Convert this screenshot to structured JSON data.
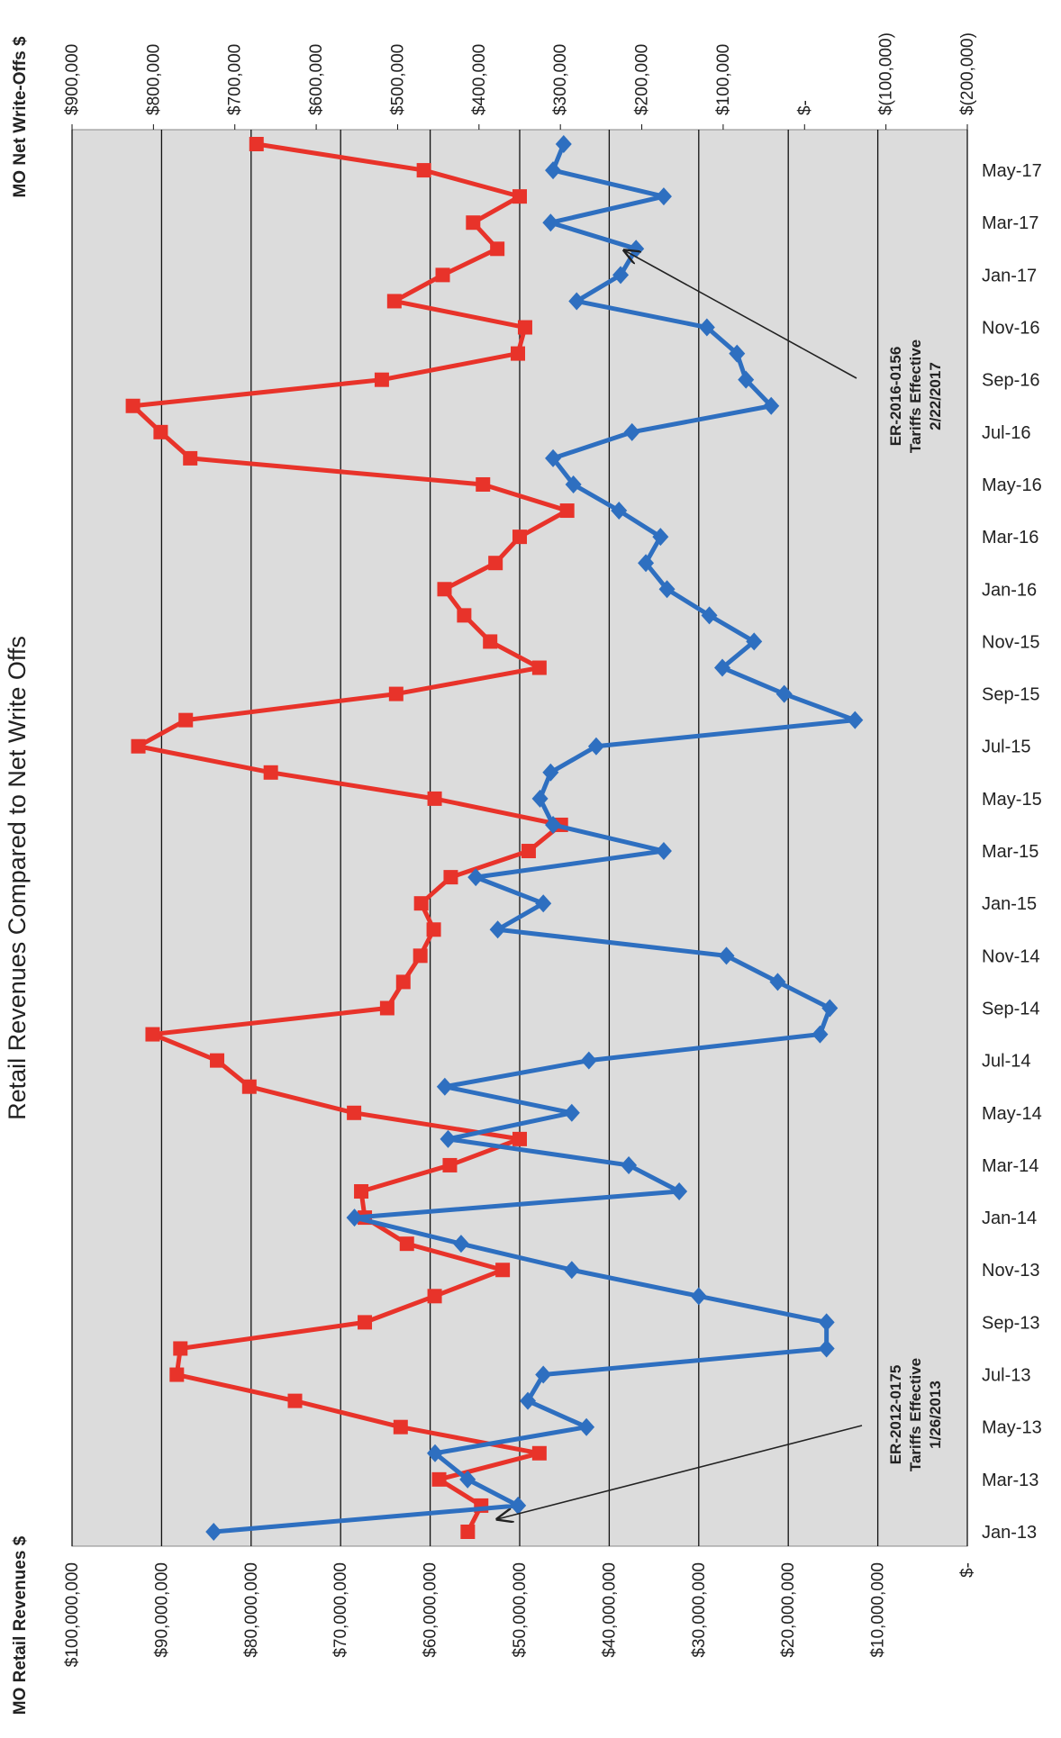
{
  "chart_data": {
    "type": "line",
    "title": "Retail Revenues Compared to Net Write Offs",
    "y_axis_label": "MO Retail Revenues $",
    "y2_axis_label": "MO Net Write-Offs $",
    "categories": [
      "Jan-13",
      null,
      "Mar-13",
      null,
      "May-13",
      null,
      "Jul-13",
      null,
      "Sep-13",
      null,
      "Nov-13",
      null,
      "Jan-14",
      null,
      "Mar-14",
      null,
      "May-14",
      null,
      "Jul-14",
      null,
      "Sep-14",
      null,
      "Nov-14",
      null,
      "Jan-15",
      null,
      "Mar-15",
      null,
      "May-15",
      null,
      "Jul-15",
      null,
      "Sep-15",
      null,
      "Nov-15",
      null,
      "Jan-16",
      null,
      "Mar-16",
      null,
      "May-16",
      null,
      "Jul-16",
      null,
      "Sep-16",
      null,
      "Nov-16",
      null,
      "Jan-17",
      null,
      "Mar-17",
      null,
      "May-17",
      null
    ],
    "ylim": [
      0,
      100000000
    ],
    "yticks": [
      {
        "value": 0,
        "label": "$-"
      },
      {
        "value": 10000000,
        "label": "$10,000,000"
      },
      {
        "value": 20000000,
        "label": "$20,000,000"
      },
      {
        "value": 30000000,
        "label": "$30,000,000"
      },
      {
        "value": 40000000,
        "label": "$40,000,000"
      },
      {
        "value": 50000000,
        "label": "$50,000,000"
      },
      {
        "value": 60000000,
        "label": "$60,000,000"
      },
      {
        "value": 70000000,
        "label": "$70,000,000"
      },
      {
        "value": 80000000,
        "label": "$80,000,000"
      },
      {
        "value": 90000000,
        "label": "$90,000,000"
      },
      {
        "value": 100000000,
        "label": "$100,000,000"
      }
    ],
    "y2lim": [
      -200000,
      900000
    ],
    "y2ticks": [
      {
        "value": -200000,
        "label": "$(200,000)"
      },
      {
        "value": -100000,
        "label": "$(100,000)"
      },
      {
        "value": 0,
        "label": "$-"
      },
      {
        "value": 100000,
        "label": "$100,000"
      },
      {
        "value": 200000,
        "label": "$200,000"
      },
      {
        "value": 300000,
        "label": "$300,000"
      },
      {
        "value": 400000,
        "label": "$400,000"
      },
      {
        "value": 500000,
        "label": "$500,000"
      },
      {
        "value": 600000,
        "label": "$600,000"
      },
      {
        "value": 700000,
        "label": "$700,000"
      },
      {
        "value": 800000,
        "label": "$800,000"
      },
      {
        "value": 900000,
        "label": "$900,000"
      }
    ],
    "grid": true,
    "series": [
      {
        "color": "#e8332a",
        "marker": "square",
        "values": [
          55800000,
          54300000,
          59000000,
          47800000,
          63300000,
          75100000,
          88300000,
          87900000,
          67300000,
          59500000,
          51900000,
          62600000,
          67300000,
          67700000,
          57800000,
          50000000,
          68500000,
          80200000,
          83800000,
          91000000,
          64800000,
          63000000,
          61100000,
          59600000,
          61000000,
          57700000,
          49000000,
          45400000,
          59500000,
          77800000,
          92600000,
          87300000,
          63800000,
          47800000,
          53300000,
          56200000,
          58400000,
          52700000,
          50000000,
          44700000,
          54100000,
          86800000,
          90100000,
          93200000,
          65400000,
          50200000,
          49400000,
          64000000,
          58600000,
          52500000,
          55200000,
          50000000,
          60700000,
          79400000
        ]
      },
      {
        "color": "#2e6fc0",
        "marker": "diamond",
        "axis": "y2",
        "values": [
          726000,
          352000,
          414000,
          454000,
          268000,
          340000,
          321000,
          -27000,
          -27000,
          130000,
          286000,
          422000,
          553000,
          154000,
          216000,
          438000,
          286000,
          442000,
          265000,
          -19000,
          -31000,
          33000,
          96000,
          377000,
          321000,
          404000,
          173000,
          309000,
          325000,
          312000,
          256000,
          -62000,
          25000,
          101000,
          62000,
          117000,
          169000,
          195000,
          177000,
          228000,
          284000,
          309000,
          212000,
          41000,
          72000,
          83000,
          120000,
          280000,
          226000,
          207000,
          312000,
          173000,
          309000,
          296000
        ]
      }
    ],
    "annotations": [
      [
        "ER-2012-0175",
        "Tariffs Effective",
        "1/26/2013"
      ],
      [
        "ER-2016-0156",
        "Tariffs Effective",
        "2/22/2017"
      ]
    ]
  }
}
